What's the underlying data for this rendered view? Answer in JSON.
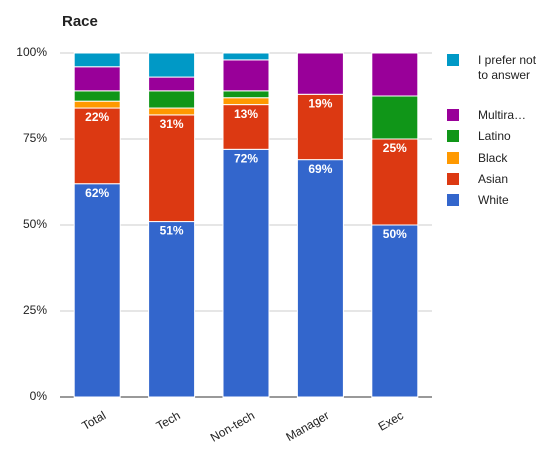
{
  "chart_data": {
    "type": "stacked_bar",
    "title": "Race",
    "categories": [
      "Total",
      "Tech",
      "Non-tech",
      "Manager",
      "Exec"
    ],
    "series": [
      {
        "name": "White",
        "color": "#3366cc",
        "values": [
          62,
          51,
          72,
          69,
          50
        ],
        "value_labels": [
          "62%",
          "51%",
          "72%",
          "69%",
          "50%"
        ]
      },
      {
        "name": "Asian",
        "color": "#dc3912",
        "values": [
          22,
          31,
          13,
          19,
          25
        ],
        "value_labels": [
          "22%",
          "31%",
          "13%",
          "19%",
          "25%"
        ]
      },
      {
        "name": "Black",
        "color": "#ff9900",
        "values": [
          2,
          2,
          2,
          0,
          0
        ]
      },
      {
        "name": "Latino",
        "color": "#109618",
        "values": [
          3,
          5,
          2,
          0,
          12.5
        ]
      },
      {
        "name": "Multira…",
        "color": "#990099",
        "values": [
          7,
          4,
          9,
          12,
          12.5
        ]
      },
      {
        "name": "I prefer not to answer",
        "color": "#0099c6",
        "values": [
          4,
          7,
          2,
          0,
          0
        ]
      }
    ],
    "ylim": [
      0,
      100
    ],
    "yticks": [
      {
        "value": 0,
        "label": "0%"
      },
      {
        "value": 25,
        "label": "25%"
      },
      {
        "value": 50,
        "label": "50%"
      },
      {
        "value": 75,
        "label": "75%"
      },
      {
        "value": 100,
        "label": "100%"
      }
    ],
    "grid": true,
    "legend": "right"
  }
}
